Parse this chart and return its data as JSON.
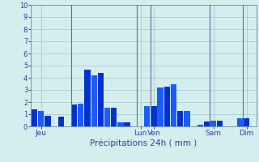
{
  "title": "Précipitations 24h ( mm )",
  "background_color": "#d4eeee",
  "grid_color": "#aacccc",
  "bar_color_dark": "#0033cc",
  "bar_color_light": "#1a5cff",
  "ylim": [
    0,
    10
  ],
  "yticks": [
    0,
    1,
    2,
    3,
    4,
    5,
    6,
    7,
    8,
    9,
    10
  ],
  "bar_values": [
    1.4,
    1.3,
    0.9,
    0.0,
    0.8,
    0.0,
    1.8,
    1.9,
    4.65,
    4.2,
    4.4,
    1.55,
    1.55,
    0.35,
    0.35,
    0.0,
    0.0,
    1.7,
    1.65,
    3.2,
    3.25,
    3.5,
    1.3,
    1.25,
    0.0,
    0.15,
    0.4,
    0.45,
    0.5,
    0.0,
    0.0,
    0.7,
    0.65,
    0.0
  ],
  "n_bars": 34,
  "day_labels": [
    "Jeu",
    "Lun",
    "Ven",
    "Sam",
    "Dim"
  ],
  "day_tick_positions": [
    1,
    16,
    18,
    27,
    32
  ],
  "vline_positions": [
    5.5,
    15.5,
    17.5,
    26.5,
    31.5
  ],
  "figsize": [
    3.2,
    2.0
  ],
  "dpi": 100
}
